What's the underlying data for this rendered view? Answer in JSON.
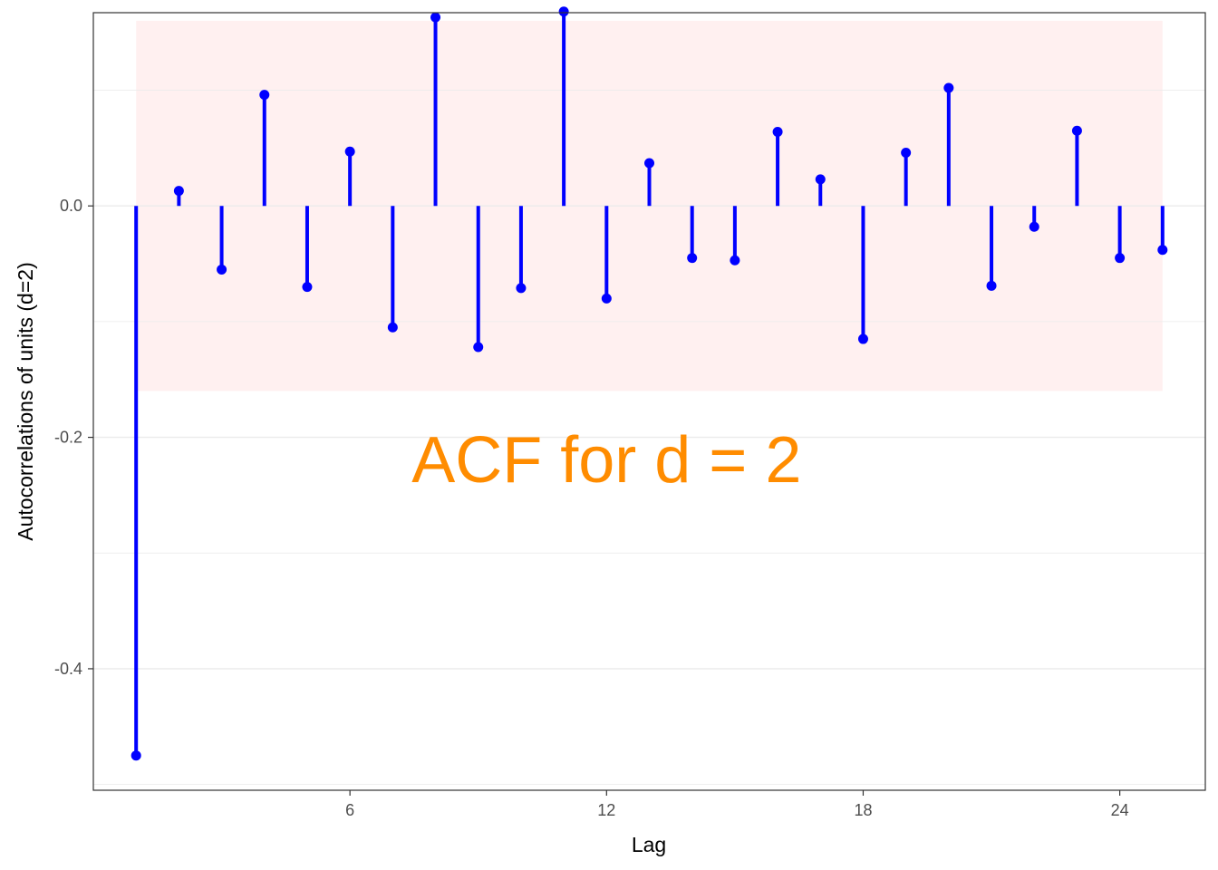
{
  "chart_data": {
    "type": "lollipop",
    "xlabel": "Lag",
    "ylabel": "Autocorrelations of units (d=2)",
    "annotation": "ACF for d = 2",
    "annotation_x": 12,
    "annotation_y": -0.22,
    "xlim": [
      0.0,
      26.0
    ],
    "ylim": [
      -0.505,
      0.167
    ],
    "x_ticks": [
      6,
      12,
      18,
      24
    ],
    "x_tick_labels": [
      "6",
      "12",
      "18",
      "24"
    ],
    "y_ticks": [
      -0.4,
      -0.2,
      0.0
    ],
    "y_tick_labels": [
      "-0.4",
      "-0.2",
      "0.0"
    ],
    "y_minor_ticks": [
      -0.5,
      -0.3,
      -0.1,
      0.1
    ],
    "grid": true,
    "confidence_band": [
      -0.16,
      0.16
    ],
    "lags": [
      1,
      2,
      3,
      4,
      5,
      6,
      7,
      8,
      9,
      10,
      11,
      12,
      13,
      14,
      15,
      16,
      17,
      18,
      19,
      20,
      21,
      22,
      23,
      24,
      25
    ],
    "values": [
      -0.475,
      0.013,
      -0.055,
      0.096,
      -0.07,
      0.047,
      -0.105,
      0.163,
      -0.122,
      -0.071,
      0.168,
      -0.08,
      0.037,
      -0.045,
      -0.047,
      0.064,
      0.023,
      -0.115,
      0.046,
      0.102,
      -0.069,
      -0.018,
      0.065,
      -0.045,
      -0.038
    ],
    "colors": {
      "stem": "#0000ff",
      "band": "#fff0f0",
      "annotation": "#ff8c00",
      "grid": "#ebebeb",
      "panel_border": "#333333"
    }
  }
}
